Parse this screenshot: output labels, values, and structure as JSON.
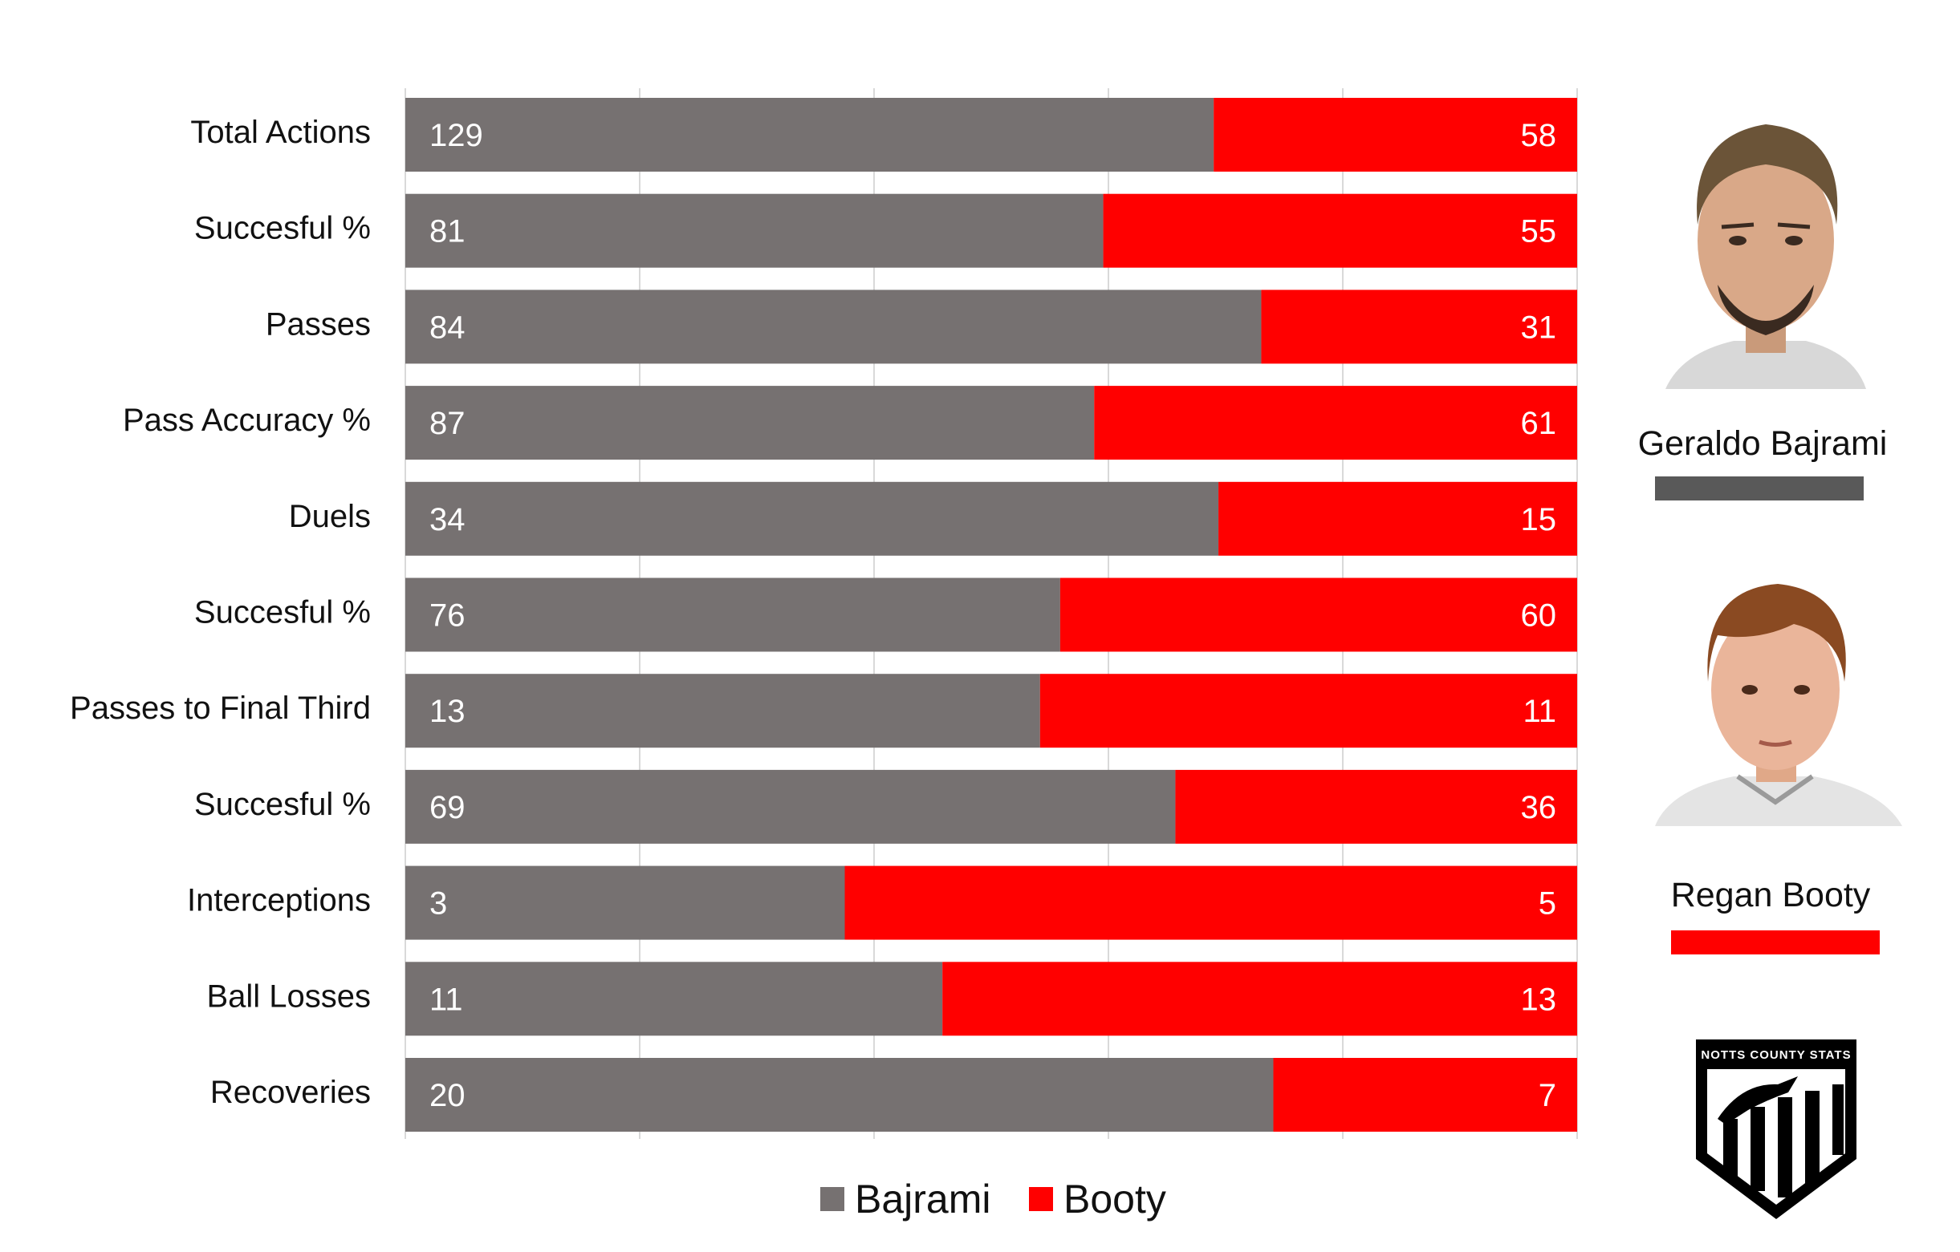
{
  "chart_data": {
    "type": "bar",
    "stacking": "100% stacked horizontal",
    "categories": [
      "Total Actions",
      "Succesful %",
      "Passes",
      "Pass Accuracy %",
      "Duels",
      "Succesful %",
      "Passes to Final Third",
      "Succesful %",
      "Interceptions",
      "Ball Losses",
      "Recoveries"
    ],
    "series": [
      {
        "name": "Bajrami",
        "color": "#767171",
        "values": [
          129,
          81,
          84,
          87,
          34,
          76,
          13,
          69,
          3,
          11,
          20
        ]
      },
      {
        "name": "Booty",
        "color": "#ff0000",
        "values": [
          58,
          55,
          31,
          61,
          15,
          60,
          11,
          36,
          5,
          13,
          7
        ]
      }
    ],
    "xlim": [
      0,
      1
    ],
    "grid": true,
    "legend": "bottom"
  },
  "players": [
    {
      "name": "Geraldo Bajrami",
      "color": "#595959"
    },
    {
      "name": "Regan Booty",
      "color": "#ff0000"
    }
  ],
  "logo": {
    "text": "NOTTS COUNTY STATS"
  }
}
